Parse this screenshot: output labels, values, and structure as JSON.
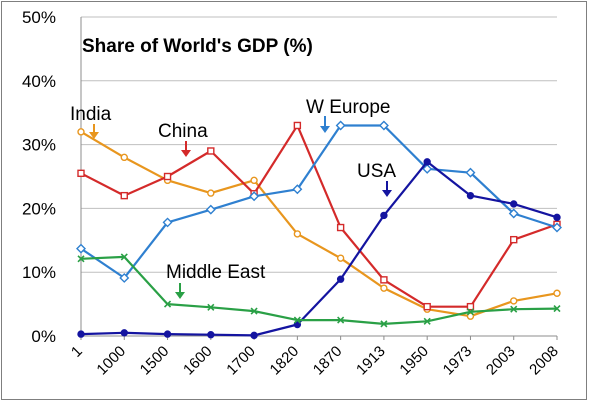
{
  "chart_data": {
    "type": "line",
    "title": "Share of World's GDP (%)",
    "xlabel": "",
    "ylabel": "",
    "categories": [
      "1",
      "1000",
      "1500",
      "1600",
      "1700",
      "1820",
      "1870",
      "1913",
      "1950",
      "1973",
      "2003",
      "2008"
    ],
    "ylim": [
      0,
      50
    ],
    "yticks": [
      "0%",
      "10%",
      "20%",
      "30%",
      "40%",
      "50%"
    ],
    "grid": true,
    "series": [
      {
        "name": "India",
        "color": "#E8961E",
        "marker": "circle",
        "values": [
          32,
          28,
          24.4,
          22.4,
          24.4,
          16,
          12.2,
          7.5,
          4.2,
          3.1,
          5.5,
          6.7
        ]
      },
      {
        "name": "China",
        "color": "#D42A2A",
        "marker": "square",
        "values": [
          25.5,
          22,
          25,
          29,
          22.3,
          33,
          17,
          8.8,
          4.6,
          4.6,
          15.1,
          17.5
        ]
      },
      {
        "name": "W Europe",
        "color": "#2F80D0",
        "marker": "diamond",
        "values": [
          13.7,
          9.1,
          17.8,
          19.8,
          21.9,
          23,
          33,
          33,
          26.2,
          25.6,
          19.2,
          17
        ]
      },
      {
        "name": "USA",
        "color": "#1414A0",
        "marker": "circle",
        "values": [
          0.3,
          0.5,
          0.3,
          0.2,
          0.1,
          1.8,
          8.9,
          18.9,
          27.3,
          22,
          20.7,
          18.6
        ]
      },
      {
        "name": "Middle East",
        "color": "#2AA046",
        "marker": "x",
        "values": [
          12.1,
          12.4,
          5,
          4.5,
          3.9,
          2.5,
          2.5,
          1.9,
          2.3,
          3.8,
          4.2,
          4.3
        ]
      }
    ],
    "annotations": [
      {
        "text": "India",
        "color": "#E8961E"
      },
      {
        "text": "China",
        "color": "#D42A2A"
      },
      {
        "text": "W Europe",
        "color": "#2F80D0"
      },
      {
        "text": "USA",
        "color": "#1414A0"
      },
      {
        "text": "Middle East",
        "color": "#2AA046"
      }
    ]
  }
}
